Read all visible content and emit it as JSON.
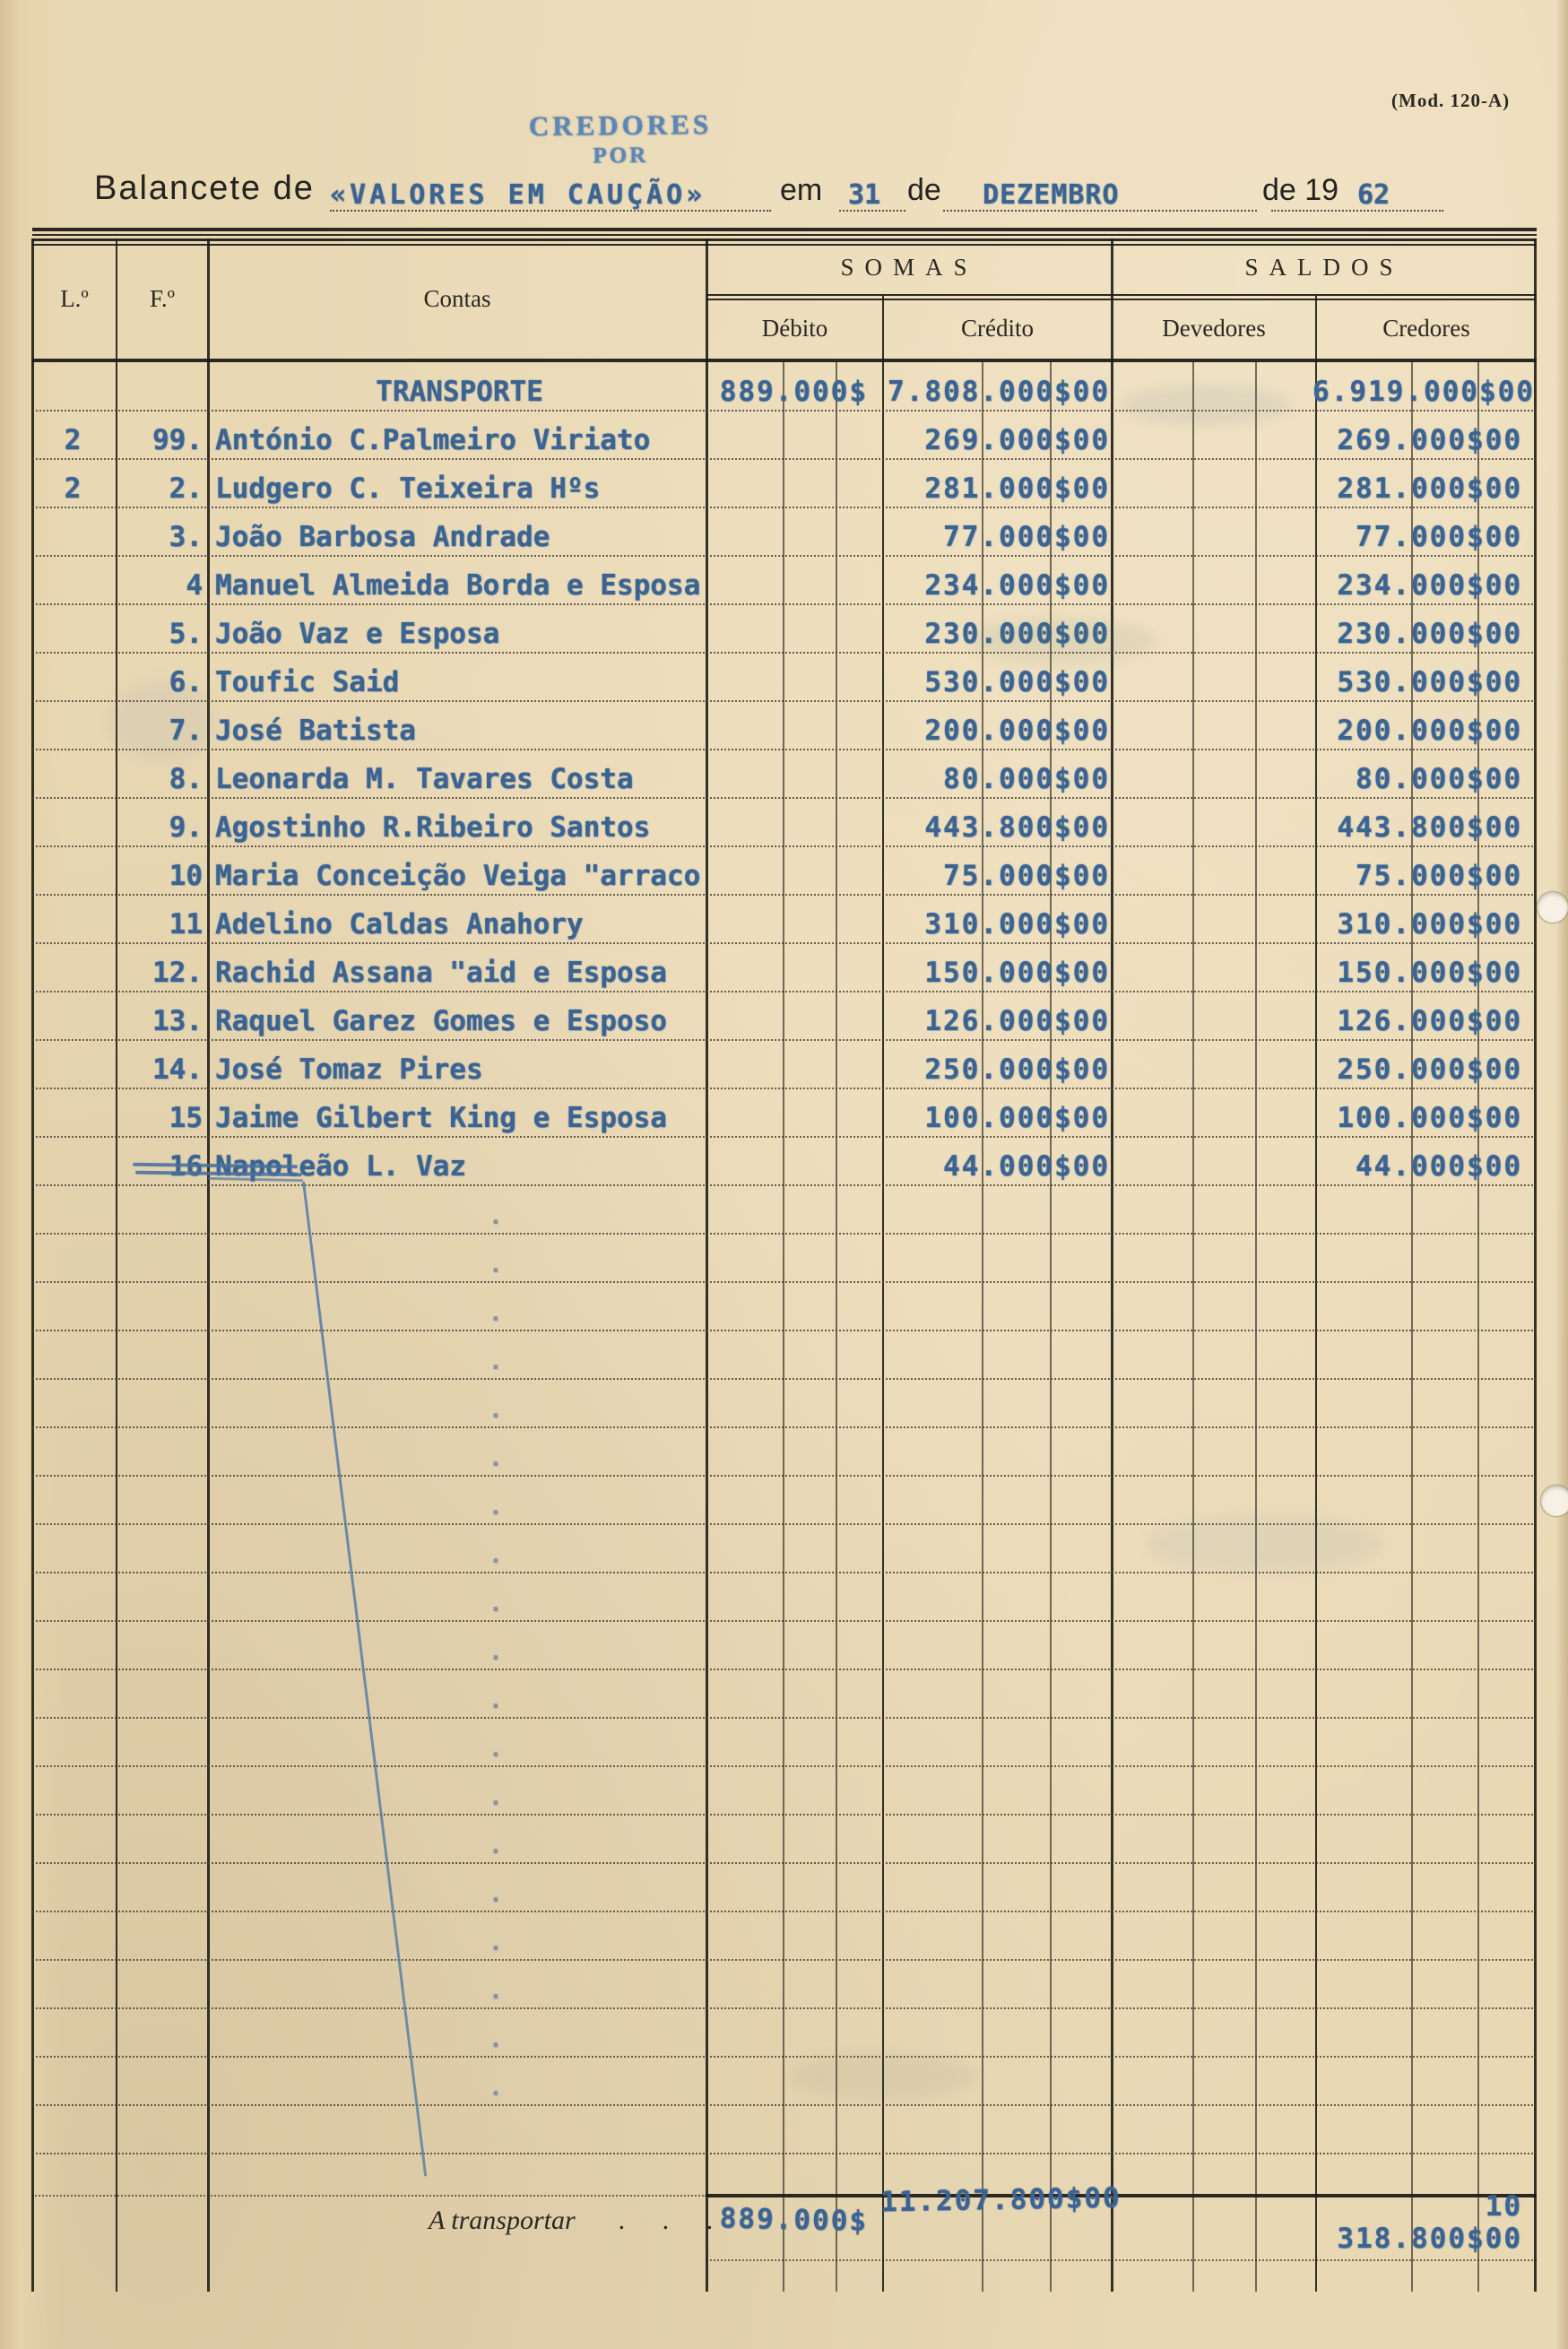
{
  "colors": {
    "paper": "#e9d8b4",
    "typed_ink": "#3b6493",
    "stamp_ink": "#4b7cb3",
    "print_ink": "#2b2822"
  },
  "form": {
    "mod": "(Mod. 120-A)",
    "stamp_line1": "CREDORES",
    "stamp_line2": "POR",
    "title": {
      "prefix": "Balancete de",
      "subject": "«VALORES EM CAUÇÃO»",
      "em": "em",
      "day": "31",
      "de1": "de",
      "month": "DEZEMBRO",
      "de2": "de 19",
      "year": "62"
    }
  },
  "table": {
    "headers": {
      "lno": "L.º",
      "fno": "F.º",
      "contas": "Contas",
      "somas": "SOMAS",
      "saldos": "SALDOS",
      "debito": "Débito",
      "credito": "Crédito",
      "devedores": "Devedores",
      "credores": "Credores"
    },
    "rows": [
      {
        "l": "",
        "f": "",
        "conta": "TRANSPORTE",
        "debito": "889.000$",
        "credito": "7.808.000$00",
        "devedores": "",
        "credores": "6.919.000$00",
        "center": true
      },
      {
        "l": "2",
        "f": "99.",
        "conta": "António C.Palmeiro Viriato",
        "debito": "",
        "credito": "269.000$00",
        "devedores": "",
        "credores": "269.000$00"
      },
      {
        "l": "2",
        "f": "2.",
        "conta": "Ludgero C. Teixeira Hºs",
        "debito": "",
        "credito": "281.000$00",
        "devedores": "",
        "credores": "281.000$00"
      },
      {
        "l": "",
        "f": "3.",
        "conta": "João Barbosa Andrade",
        "debito": "",
        "credito": "77.000$00",
        "devedores": "",
        "credores": "77.000$00"
      },
      {
        "l": "",
        "f": "4",
        "conta": "Manuel Almeida Borda e Esposa",
        "debito": "",
        "credito": "234.000$00",
        "devedores": "",
        "credores": "234.000$00"
      },
      {
        "l": "",
        "f": "5.",
        "conta": "João Vaz e Esposa",
        "debito": "",
        "credito": "230.000$00",
        "devedores": "",
        "credores": "230.000$00"
      },
      {
        "l": "",
        "f": "6.",
        "conta": "Toufic Said",
        "debito": "",
        "credito": "530.000$00",
        "devedores": "",
        "credores": "530.000$00"
      },
      {
        "l": "",
        "f": "7.",
        "conta": "José Batista",
        "debito": "",
        "credito": "200.000$00",
        "devedores": "",
        "credores": "200.000$00"
      },
      {
        "l": "",
        "f": "8.",
        "conta": "Leonarda M. Tavares Costa",
        "debito": "",
        "credito": "80.000$00",
        "devedores": "",
        "credores": "80.000$00"
      },
      {
        "l": "",
        "f": "9.",
        "conta": "Agostinho R.Ribeiro Santos",
        "debito": "",
        "credito": "443.800$00",
        "devedores": "",
        "credores": "443.800$00"
      },
      {
        "l": "",
        "f": "10",
        "conta": "Maria Conceição Veiga \"arraco",
        "debito": "",
        "credito": "75.000$00",
        "devedores": "",
        "credores": "75.000$00"
      },
      {
        "l": "",
        "f": "11",
        "conta": "Adelino Caldas Anahory",
        "debito": "",
        "credito": "310.000$00",
        "devedores": "",
        "credores": "310.000$00"
      },
      {
        "l": "",
        "f": "12.",
        "conta": "Rachid Assana \"aid e Esposa",
        "debito": "",
        "credito": "150.000$00",
        "devedores": "",
        "credores": "150.000$00"
      },
      {
        "l": "",
        "f": "13.",
        "conta": "Raquel Garez Gomes e Esposo",
        "debito": "",
        "credito": "126.000$00",
        "devedores": "",
        "credores": "126.000$00"
      },
      {
        "l": "",
        "f": "14.",
        "conta": "José Tomaz Pires",
        "debito": "",
        "credito": "250.000$00",
        "devedores": "",
        "credores": "250.000$00"
      },
      {
        "l": "",
        "f": "15",
        "conta": "Jaime Gilbert King e Esposa",
        "debito": "",
        "credito": "100.000$00",
        "devedores": "",
        "credores": "100.000$00"
      },
      {
        "l": "",
        "f": "16",
        "conta": "Napoleão L. Vaz",
        "debito": "",
        "credito": "44.000$00",
        "devedores": "",
        "credores": "44.000$00"
      }
    ],
    "empty_row_dot": ".",
    "footer": {
      "label": "A transportar",
      "dots": ". . .",
      "debito": "889.000$",
      "credito": "11.207.800$00",
      "credores": "10 318.800$00"
    }
  }
}
